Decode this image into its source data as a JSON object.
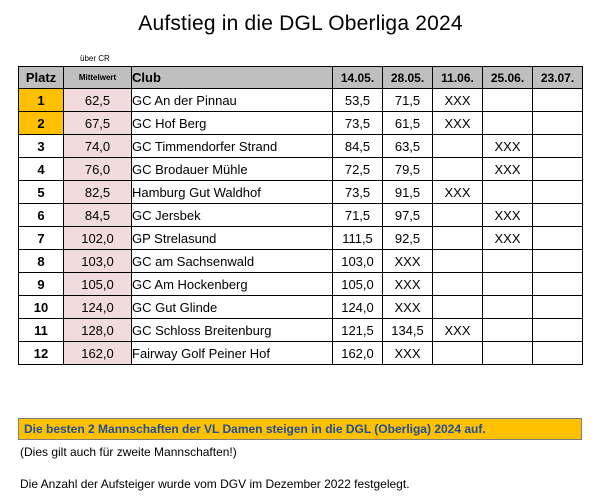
{
  "title": "Aufstieg in die DGL Oberliga 2024",
  "over_label": "über CR",
  "headers": {
    "platz": "Platz",
    "mittelwert": "Mittelwert",
    "club": "Club",
    "dates": [
      "14.05.",
      "28.05.",
      "11.06.",
      "25.06.",
      "23.07."
    ]
  },
  "rows": [
    {
      "platz": "1",
      "mw": "62,5",
      "club": "GC An der Pinnau",
      "d": [
        "53,5",
        "71,5",
        "XXX",
        "",
        ""
      ]
    },
    {
      "platz": "2",
      "mw": "67,5",
      "club": "GC Hof Berg",
      "d": [
        "73,5",
        "61,5",
        "XXX",
        "",
        ""
      ]
    },
    {
      "platz": "3",
      "mw": "74,0",
      "club": "GC Timmendorfer Strand",
      "d": [
        "84,5",
        "63,5",
        "",
        "XXX",
        ""
      ]
    },
    {
      "platz": "4",
      "mw": "76,0",
      "club": "GC Brodauer Mühle",
      "d": [
        "72,5",
        "79,5",
        "",
        "XXX",
        ""
      ]
    },
    {
      "platz": "5",
      "mw": "82,5",
      "club": "Hamburg Gut Waldhof",
      "d": [
        "73,5",
        "91,5",
        "XXX",
        "",
        ""
      ]
    },
    {
      "platz": "6",
      "mw": "84,5",
      "club": "GC Jersbek",
      "d": [
        "71,5",
        "97,5",
        "",
        "XXX",
        ""
      ]
    },
    {
      "platz": "7",
      "mw": "102,0",
      "club": "GP Strelasund",
      "d": [
        "111,5",
        "92,5",
        "",
        "XXX",
        ""
      ]
    },
    {
      "platz": "8",
      "mw": "103,0",
      "club": "GC am Sachsenwald",
      "d": [
        "103,0",
        "XXX",
        "",
        "",
        ""
      ]
    },
    {
      "platz": "9",
      "mw": "105,0",
      "club": "GC Am Hockenberg",
      "d": [
        "105,0",
        "XXX",
        "",
        "",
        ""
      ]
    },
    {
      "platz": "10",
      "mw": "124,0",
      "club": "GC Gut Glinde",
      "d": [
        "124,0",
        "XXX",
        "",
        "",
        ""
      ]
    },
    {
      "platz": "11",
      "mw": "128,0",
      "club": "GC Schloss Breitenburg",
      "d": [
        "121,5",
        "134,5",
        "XXX",
        "",
        ""
      ]
    },
    {
      "platz": "12",
      "mw": "162,0",
      "club": "Fairway Golf Peiner Hof",
      "d": [
        "162,0",
        "XXX",
        "",
        "",
        ""
      ]
    }
  ],
  "banner": "Die besten 2 Mannschaften der VL Damen steigen in die DGL (Oberliga) 2024 auf.",
  "note1": "(Dies gilt auch für zweite Mannschaften!)",
  "note2": "Die Anzahl der Aufsteiger wurde vom DGV im Dezember 2022 festgelegt.",
  "colors": {
    "highlight": "#ffc000",
    "mittelwert_bg": "#f2dcdb",
    "header_bg": "#bfbfbf",
    "banner_text": "#1f4e9e"
  }
}
